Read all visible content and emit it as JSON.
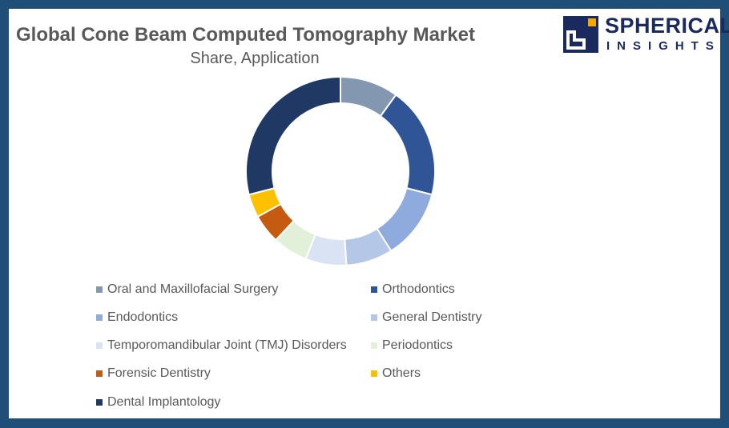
{
  "header": {
    "title": "Global Cone Beam Computed Tomography Market",
    "subtitle": "Share, Application"
  },
  "logo": {
    "line1": "SPHERICAL",
    "line2": "INSIGHTS",
    "colors": {
      "navy": "#1a2a5e",
      "accent": "#f5a800"
    }
  },
  "frame_color": "#1f4e79",
  "chart_data": {
    "type": "pie",
    "variant": "donut",
    "title": "Global Cone Beam Computed Tomography Market",
    "subtitle": "Share, Application",
    "legend_position": "bottom",
    "categories": [
      "Oral and Maxillofacial Surgery",
      "Orthodontics",
      "Endodontics",
      "General Dentistry",
      "Temporomandibular Joint (TMJ) Disorders",
      "Periodontics",
      "Forensic Dentistry",
      "Others",
      "Dental Implantology"
    ],
    "values": [
      10,
      19,
      12,
      8,
      7,
      6,
      5,
      4,
      29
    ],
    "colors": [
      "#8497b0",
      "#2f5597",
      "#8faadc",
      "#b4c7e7",
      "#dae3f3",
      "#e2f0d9",
      "#c55a11",
      "#ffc000",
      "#203864"
    ]
  }
}
